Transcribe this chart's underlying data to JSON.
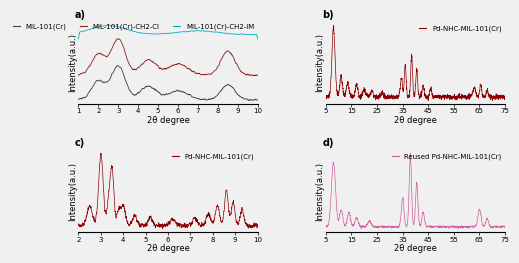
{
  "panel_a": {
    "label": "a)",
    "xlabel": "2θ degree",
    "ylabel": "Intensity(a.u.)",
    "xrange": [
      1,
      10
    ],
    "xticks": [
      1,
      2,
      3,
      4,
      5,
      6,
      7,
      8,
      9,
      10
    ],
    "legend": [
      "MIL-101(Cr)",
      "MIL-101(Cr)-CH2-Cl",
      "MIL-101(Cr)-CH2-IM"
    ],
    "colors": [
      "#404040",
      "#8b2020",
      "#00b0c8"
    ]
  },
  "panel_b": {
    "label": "b)",
    "xlabel": "2θ degree",
    "ylabel": "Intensity(a.u.)",
    "xrange": [
      5,
      75
    ],
    "xticks": [
      5,
      15,
      25,
      35,
      45,
      55,
      65,
      75
    ],
    "legend": [
      "Pd-NHC-MIL-101(Cr)"
    ],
    "colors": [
      "#8b0000"
    ]
  },
  "panel_c": {
    "label": "c)",
    "xlabel": "2θ degree",
    "ylabel": "Intensity(a.u.)",
    "xrange": [
      2,
      10
    ],
    "xticks": [
      2,
      3,
      4,
      5,
      6,
      7,
      8,
      9,
      10
    ],
    "legend": [
      "Pd-NHC-MIL-101(Cr)"
    ],
    "colors": [
      "#8b0000"
    ]
  },
  "panel_d": {
    "label": "d)",
    "xlabel": "2θ degree",
    "ylabel": "Intensity(a.u.)",
    "xrange": [
      5,
      75
    ],
    "xticks": [
      5,
      15,
      25,
      35,
      45,
      55,
      65,
      75
    ],
    "legend": [
      "Reused Pd-NHC-MIL-101(Cr)"
    ],
    "colors": [
      "#d060a0"
    ]
  },
  "background": "#f0f0f0",
  "label_fontsize": 6,
  "tick_fontsize": 5,
  "legend_fontsize": 5
}
